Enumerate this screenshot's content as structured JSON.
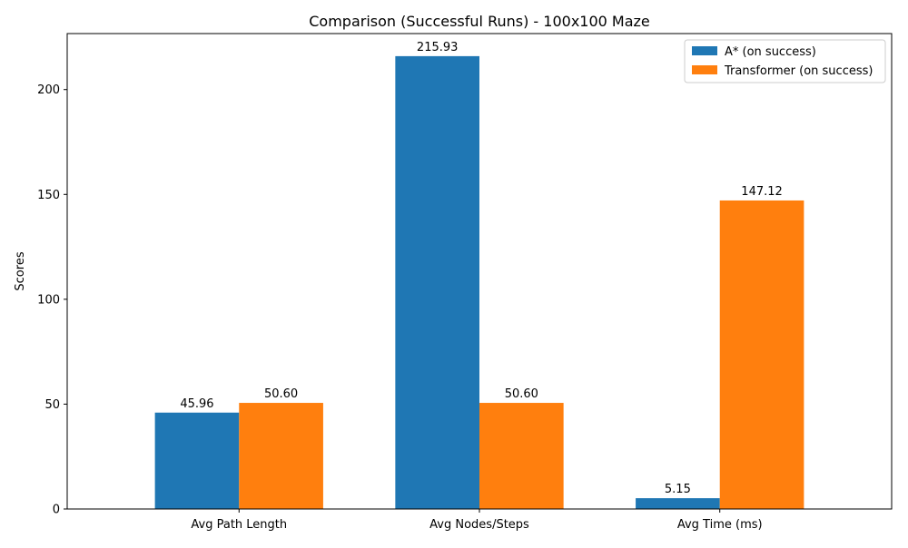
{
  "chart_data": {
    "type": "bar",
    "title": "Comparison (Successful Runs) - 100x100 Maze",
    "xlabel": "",
    "ylabel": "Scores",
    "categories": [
      "Avg Path Length",
      "Avg Nodes/Steps",
      "Avg Time (ms)"
    ],
    "series": [
      {
        "name": "A* (on success)",
        "color": "#1f77b4",
        "values": [
          45.96,
          215.93,
          5.15
        ],
        "labels": [
          "45.96",
          "215.93",
          "5.15"
        ]
      },
      {
        "name": "Transformer (on success)",
        "color": "#ff7f0e",
        "values": [
          50.6,
          50.6,
          147.12
        ],
        "labels": [
          "50.60",
          "50.60",
          "147.12"
        ]
      }
    ],
    "ylim": [
      0,
      226.7
    ],
    "yticks": [
      0,
      50,
      100,
      150,
      200
    ],
    "ytick_labels": [
      "0",
      "50",
      "100",
      "150",
      "200"
    ],
    "grid": false,
    "legend_position": "top-right"
  }
}
